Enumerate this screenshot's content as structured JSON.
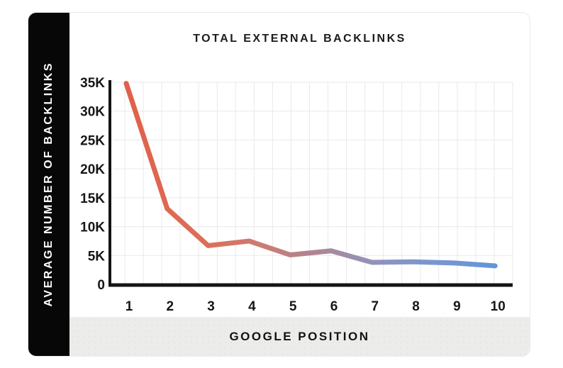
{
  "page": {
    "background": "#ffffff"
  },
  "card": {
    "border_color": "#e9e9e7",
    "sidebar_bg": "#070707",
    "footer_bg": "#ececea"
  },
  "chart_data": {
    "type": "line",
    "title": "TOTAL EXTERNAL BACKLINKS",
    "xlabel": "GOOGLE POSITION",
    "ylabel": "AVERAGE NUMBER OF BACKLINKS",
    "x": [
      1,
      2,
      3,
      4,
      5,
      6,
      7,
      8,
      9,
      10
    ],
    "x_tick_labels": [
      "1",
      "2",
      "3",
      "4",
      "5",
      "6",
      "7",
      "8",
      "9",
      "10"
    ],
    "values": [
      34800,
      13100,
      6700,
      7500,
      5100,
      5800,
      3800,
      3900,
      3700,
      3200
    ],
    "y_ticks": [
      {
        "label": "35K",
        "value": 35000
      },
      {
        "label": "30K",
        "value": 30000
      },
      {
        "label": "25K",
        "value": 25000
      },
      {
        "label": "20K",
        "value": 20000
      },
      {
        "label": "15K",
        "value": 15000
      },
      {
        "label": "10K",
        "value": 10000
      },
      {
        "label": "5K",
        "value": 5000
      },
      {
        "label": "0",
        "value": 0
      }
    ],
    "ylim": [
      0,
      35000
    ],
    "grid": true,
    "legend_position": "none",
    "line_width": 7,
    "axis_color": "#141414",
    "grid_color": "#e9e9e9",
    "label_color": "#161616",
    "line_gradient": [
      {
        "offset": 0.0,
        "color": "#e0604a"
      },
      {
        "offset": 0.2,
        "color": "#dd6e58"
      },
      {
        "offset": 0.35,
        "color": "#cf7a6f"
      },
      {
        "offset": 0.5,
        "color": "#b08490"
      },
      {
        "offset": 0.63,
        "color": "#9990b2"
      },
      {
        "offset": 0.78,
        "color": "#8096cb"
      },
      {
        "offset": 1.0,
        "color": "#6295da"
      }
    ]
  }
}
